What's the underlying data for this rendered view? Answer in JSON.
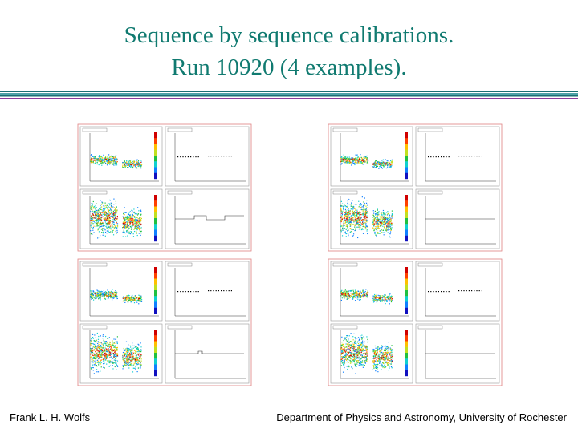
{
  "header": {
    "title_line1": "Sequence by sequence calibrations.",
    "title_line2": "Run 10920 (4 examples)."
  },
  "footer": {
    "left": "Frank L. H. Wolfs",
    "right": "Department of Physics and Astronomy, University of Rochester"
  }
}
